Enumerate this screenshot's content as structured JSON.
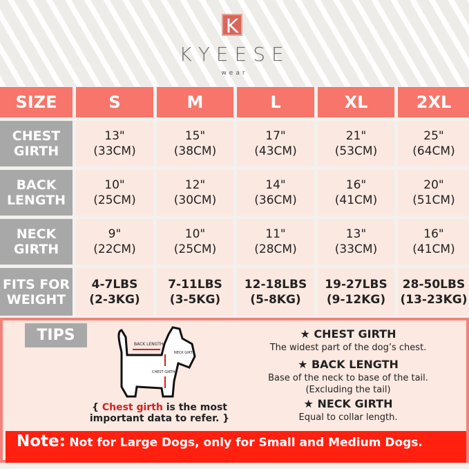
{
  "brand": {
    "logo_letter": "K",
    "name": "KYEESE",
    "sub": "wear"
  },
  "table": {
    "headers": [
      "SIZE",
      "S",
      "M",
      "L",
      "XL",
      "2XL"
    ],
    "rows": [
      {
        "label": "CHEST\nGIRTH",
        "values": [
          "13\"\n(33CM)",
          "15\"\n(38CM)",
          "17\"\n(43CM)",
          "21\"\n(53CM)",
          "25\"\n(64CM)"
        ]
      },
      {
        "label": "BACK\nLENGTH",
        "values": [
          "10\"\n(25CM)",
          "12\"\n(30CM)",
          "14\"\n(36CM)",
          "16\"\n(41CM)",
          "20\"\n(51CM)"
        ]
      },
      {
        "label": "NECK\nGIRTH",
        "values": [
          "9\"\n(22CM)",
          "10\"\n(25CM)",
          "11\"\n(28CM)",
          "13\"\n(33CM)",
          "16\"\n(41CM)"
        ]
      },
      {
        "label": "FITS FOR\nWEIGHT",
        "values": [
          "4-7LBS\n(2-3KG)",
          "7-11LBS\n(3-5KG)",
          "12-18LBS\n(5-8KG)",
          "19-27LBS\n(9-12KG)",
          "28-50LBS\n(13-23KG)"
        ]
      }
    ]
  },
  "tips": {
    "label": "TIPS",
    "diagram": {
      "back": "BACK LENGTH",
      "neck": "NECK GIRTH",
      "chest": "CHEST GIRTH"
    },
    "caption_red": "Chest girth",
    "caption_rest": " is the most",
    "caption_line2": "important data to refer.",
    "items": [
      {
        "title": "★ CHEST GIRTH",
        "desc": "The widest part of the dog’s chest."
      },
      {
        "title": "★ BACK LENGTH",
        "desc": "Base of the neck to base of the tail.",
        "desc2": "(Excluding the tail)"
      },
      {
        "title": "★ NECK GIRTH",
        "desc": "Equal to collar length."
      }
    ]
  },
  "note": {
    "label": "Note:",
    "text": "Not for Large Dogs, only for Small and Medium Dogs."
  },
  "colors": {
    "header": "#f7756a",
    "label": "#a8a8a8",
    "cell": "#fbe8e0",
    "note": "#ff2010"
  }
}
